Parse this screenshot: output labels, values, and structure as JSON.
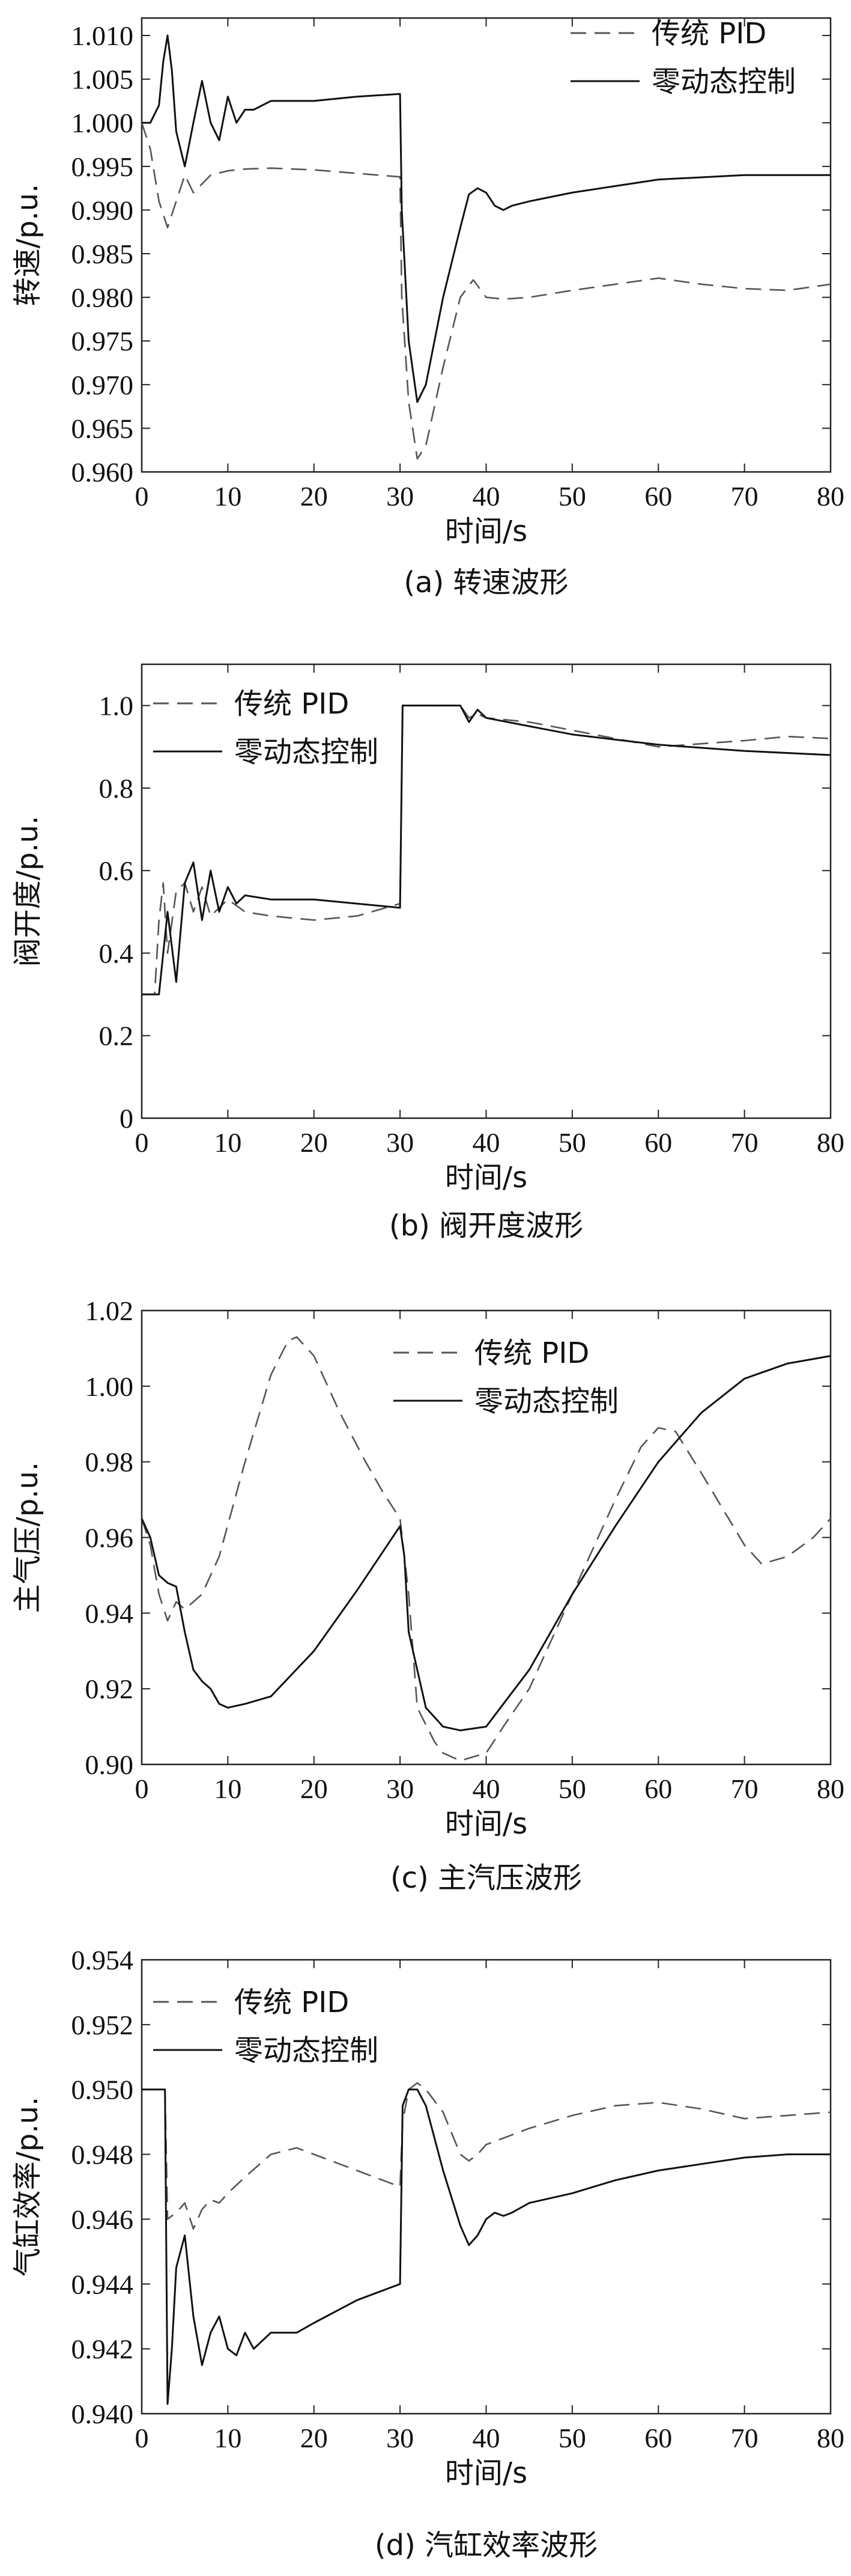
{
  "chart_data": [
    {
      "type": "line",
      "panel": "a",
      "caption": "(a) 转速波形",
      "xlabel": "时间/s",
      "ylabel": "转速/p.u.",
      "xlim": [
        0,
        80
      ],
      "ylim": [
        0.96,
        1.012
      ],
      "xticks": [
        "0",
        "10",
        "20",
        "30",
        "40",
        "50",
        "60",
        "70",
        "80"
      ],
      "yticks": [
        "0.960",
        "0.965",
        "0.970",
        "0.975",
        "0.980",
        "0.985",
        "0.990",
        "0.995",
        "1.000",
        "1.005",
        "1.010"
      ],
      "legend_position": "top-right",
      "series": [
        {
          "name": "传统 PID",
          "style": "dashed",
          "x": [
            0,
            1,
            2,
            3,
            4,
            5,
            6,
            7,
            8,
            10,
            12,
            15,
            20,
            25,
            30,
            30.2,
            31,
            32,
            33,
            35,
            37,
            38.5,
            40,
            42,
            45,
            50,
            60,
            65,
            70,
            75,
            80
          ],
          "y": [
            1.0,
            0.997,
            0.991,
            0.988,
            0.991,
            0.994,
            0.992,
            0.993,
            0.994,
            0.9945,
            0.9947,
            0.9948,
            0.9946,
            0.9942,
            0.9938,
            0.98,
            0.968,
            0.9615,
            0.963,
            0.972,
            0.98,
            0.982,
            0.98,
            0.9798,
            0.98,
            0.9808,
            0.9822,
            0.9815,
            0.981,
            0.9808,
            0.9815
          ]
        },
        {
          "name": "零动态控制",
          "style": "solid",
          "x": [
            0,
            1,
            2,
            2.5,
            3,
            3.5,
            4,
            5,
            6,
            7,
            8,
            9,
            10,
            11,
            12,
            13,
            15,
            20,
            25,
            30,
            30.2,
            31,
            32,
            33,
            35,
            37,
            38,
            39,
            40,
            41,
            42,
            43,
            45,
            50,
            60,
            70,
            80
          ],
          "y": [
            1.0,
            1.0,
            1.002,
            1.007,
            1.01,
            1.006,
            0.999,
            0.995,
            1.0,
            1.0048,
            1.0,
            0.998,
            1.003,
            1.0,
            1.0015,
            1.0015,
            1.0025,
            1.0025,
            1.003,
            1.0033,
            0.99,
            0.975,
            0.968,
            0.97,
            0.98,
            0.988,
            0.9918,
            0.9925,
            0.992,
            0.9905,
            0.99,
            0.9905,
            0.991,
            0.992,
            0.9935,
            0.994,
            0.994
          ]
        }
      ]
    },
    {
      "type": "line",
      "panel": "b",
      "caption": "(b) 阀开度波形",
      "xlabel": "时间/s",
      "ylabel": "阀开度/p.u.",
      "xlim": [
        0,
        80
      ],
      "ylim": [
        0,
        1.1
      ],
      "xticks": [
        "0",
        "10",
        "20",
        "30",
        "40",
        "50",
        "60",
        "70",
        "80"
      ],
      "yticks": [
        "0",
        "0.2",
        "0.4",
        "0.6",
        "0.8",
        "1.0"
      ],
      "legend_position": "top-left",
      "series": [
        {
          "name": "传统 PID",
          "style": "dashed",
          "x": [
            0,
            1,
            1.5,
            2,
            2.5,
            3,
            4,
            5,
            6,
            7,
            8,
            10,
            12,
            15,
            20,
            25,
            30,
            30.3,
            31,
            35,
            37,
            38,
            39,
            40,
            45,
            50,
            60,
            70,
            75,
            80
          ],
          "y": [
            0.3,
            0.3,
            0.3,
            0.48,
            0.57,
            0.4,
            0.55,
            0.57,
            0.5,
            0.56,
            0.49,
            0.53,
            0.5,
            0.49,
            0.48,
            0.49,
            0.52,
            1.0,
            1.0,
            1.0,
            1.0,
            0.97,
            0.98,
            0.97,
            0.96,
            0.94,
            0.9,
            0.915,
            0.925,
            0.92
          ]
        },
        {
          "name": "零动态控制",
          "style": "solid",
          "x": [
            0,
            2,
            3,
            4,
            5,
            6,
            7,
            8,
            9,
            10,
            11,
            12,
            15,
            20,
            25,
            30,
            30.3,
            31,
            35,
            37,
            38,
            39,
            40,
            45,
            50,
            60,
            70,
            80
          ],
          "y": [
            0.3,
            0.3,
            0.5,
            0.33,
            0.57,
            0.62,
            0.48,
            0.6,
            0.5,
            0.56,
            0.52,
            0.54,
            0.53,
            0.53,
            0.52,
            0.51,
            1.0,
            1.0,
            1.0,
            1.0,
            0.96,
            0.99,
            0.97,
            0.95,
            0.93,
            0.905,
            0.89,
            0.88
          ]
        }
      ]
    },
    {
      "type": "line",
      "panel": "c",
      "caption": "(c) 主汽压波形",
      "xlabel": "时间/s",
      "ylabel": "主气压/p.u.",
      "xlim": [
        0,
        80
      ],
      "ylim": [
        0.9,
        1.02
      ],
      "xticks": [
        "0",
        "10",
        "20",
        "30",
        "40",
        "50",
        "60",
        "70",
        "80"
      ],
      "yticks": [
        "0.90",
        "0.92",
        "0.94",
        "0.96",
        "0.98",
        "1.00",
        "1.02"
      ],
      "legend_position": "top-right",
      "series": [
        {
          "name": "传统 PID",
          "style": "dashed",
          "x": [
            0,
            1,
            2,
            3,
            4,
            5,
            7,
            9,
            12,
            15,
            17,
            18,
            20,
            23,
            26,
            28,
            30,
            31,
            32,
            34,
            35,
            36,
            37,
            40,
            42,
            45,
            50,
            55,
            58,
            60,
            62,
            65,
            70,
            72,
            75,
            78,
            80
          ],
          "y": [
            0.965,
            0.958,
            0.945,
            0.938,
            0.943,
            0.941,
            0.945,
            0.955,
            0.98,
            1.003,
            1.012,
            1.013,
            1.008,
            0.993,
            0.98,
            0.972,
            0.965,
            0.945,
            0.915,
            0.906,
            0.903,
            0.902,
            0.901,
            0.903,
            0.91,
            0.92,
            0.945,
            0.97,
            0.984,
            0.989,
            0.988,
            0.977,
            0.958,
            0.953,
            0.955,
            0.96,
            0.965
          ]
        },
        {
          "name": "零动态控制",
          "style": "solid",
          "x": [
            0,
            1,
            2,
            3,
            4,
            5,
            6,
            7,
            8,
            9,
            10,
            12,
            15,
            20,
            25,
            30,
            30.5,
            31,
            33,
            35,
            37,
            40,
            42,
            45,
            50,
            55,
            60,
            65,
            70,
            75,
            80
          ],
          "y": [
            0.965,
            0.96,
            0.95,
            0.948,
            0.947,
            0.935,
            0.925,
            0.922,
            0.92,
            0.916,
            0.915,
            0.916,
            0.918,
            0.93,
            0.946,
            0.963,
            0.955,
            0.935,
            0.915,
            0.91,
            0.909,
            0.91,
            0.916,
            0.925,
            0.945,
            0.963,
            0.98,
            0.993,
            1.002,
            1.006,
            1.008
          ]
        }
      ]
    },
    {
      "type": "line",
      "panel": "d",
      "caption": "(d) 汽缸效率波形",
      "xlabel": "时间/s",
      "ylabel": "气缸效率/p.u.",
      "xlim": [
        0,
        80
      ],
      "ylim": [
        0.94,
        0.954
      ],
      "xticks": [
        "0",
        "10",
        "20",
        "30",
        "40",
        "50",
        "60",
        "70",
        "80"
      ],
      "yticks": [
        "0.940",
        "0.942",
        "0.944",
        "0.946",
        "0.948",
        "0.950",
        "0.952",
        "0.954"
      ],
      "legend_position": "top-left",
      "series": [
        {
          "name": "传统 PID",
          "style": "dashed",
          "x": [
            0,
            2,
            2.7,
            3,
            4,
            5,
            6,
            7,
            8,
            9,
            10,
            12,
            15,
            18,
            20,
            25,
            30,
            30.3,
            31,
            32,
            33,
            35,
            37,
            38,
            39,
            40,
            42,
            45,
            50,
            55,
            60,
            65,
            70,
            75,
            80
          ],
          "y": [
            0.95,
            0.95,
            0.95,
            0.946,
            0.9462,
            0.9465,
            0.9457,
            0.9463,
            0.9466,
            0.9465,
            0.9468,
            0.9473,
            0.948,
            0.9482,
            0.948,
            0.9475,
            0.947,
            0.949,
            0.95,
            0.9502,
            0.95,
            0.9493,
            0.948,
            0.9478,
            0.948,
            0.9483,
            0.9485,
            0.9488,
            0.9492,
            0.9495,
            0.9496,
            0.9494,
            0.9491,
            0.9492,
            0.9493
          ]
        },
        {
          "name": "零动态控制",
          "style": "solid",
          "x": [
            0,
            2,
            2.7,
            3,
            3.5,
            4,
            5,
            6,
            7,
            8,
            9,
            10,
            11,
            12,
            13,
            15,
            18,
            20,
            25,
            30,
            30.3,
            31,
            32,
            33,
            35,
            37,
            38,
            39,
            40,
            41,
            42,
            43,
            45,
            50,
            55,
            60,
            65,
            70,
            75,
            80
          ],
          "y": [
            0.95,
            0.95,
            0.95,
            0.9403,
            0.942,
            0.9445,
            0.9455,
            0.943,
            0.9415,
            0.9425,
            0.943,
            0.942,
            0.9418,
            0.9425,
            0.942,
            0.9425,
            0.9425,
            0.9428,
            0.9435,
            0.944,
            0.9495,
            0.95,
            0.95,
            0.9495,
            0.9475,
            0.9458,
            0.9452,
            0.9455,
            0.946,
            0.9462,
            0.9461,
            0.9462,
            0.9465,
            0.9468,
            0.9472,
            0.9475,
            0.9477,
            0.9479,
            0.948,
            0.948
          ]
        }
      ]
    }
  ]
}
